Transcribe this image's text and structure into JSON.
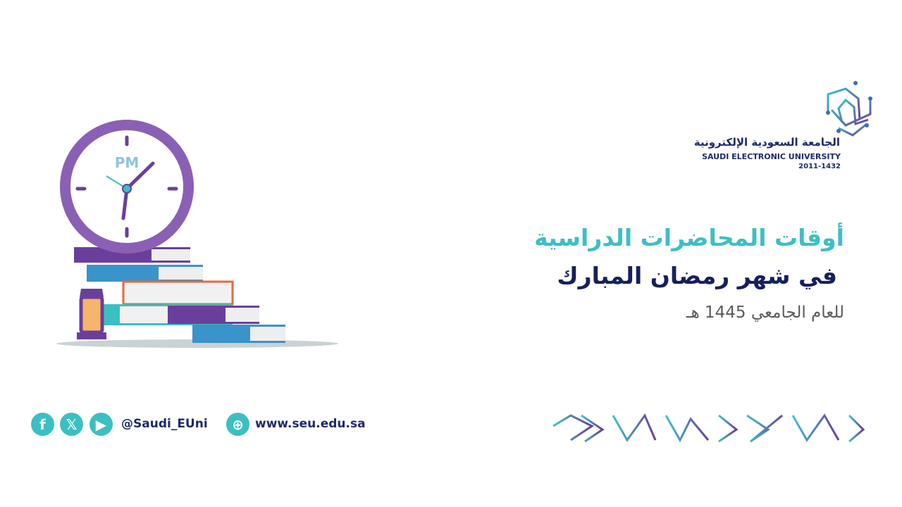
{
  "logo": {
    "name_ar": "الجامعة السعودية الإلكترونية",
    "name_en": "SAUDI ELECTRONIC UNIVERSITY",
    "years": "2011-1432"
  },
  "headline": {
    "line1": "أوقات المحاضرات الدراسية",
    "line2": "في شهر رمضان المبارك",
    "line3": "للعام الجامعي 1445 هـ"
  },
  "illustration": {
    "clock_label": "PM"
  },
  "footer": {
    "social_icons": [
      "facebook-icon",
      "x-icon",
      "youtube-icon"
    ],
    "handle": "@Saudi_EUni",
    "website": "www.seu.edu.sa"
  },
  "colors": {
    "teal": "#3cbfc4",
    "navy": "#16205c",
    "purple": "#6a3f9c",
    "gray": "#5a5a5a"
  }
}
